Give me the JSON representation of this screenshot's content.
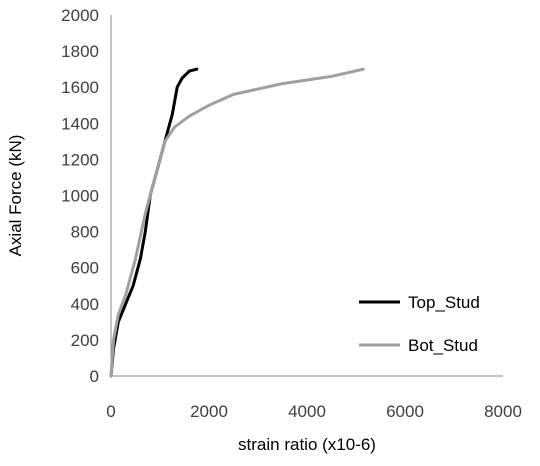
{
  "chart_data": {
    "type": "line",
    "title": "",
    "xlabel": "strain ratio (x10-6)",
    "ylabel": "Axial Force (kN)",
    "xlim": [
      0,
      8000
    ],
    "ylim": [
      0,
      2000
    ],
    "xticks": [
      "0",
      "2000",
      "4000",
      "6000",
      "8000"
    ],
    "yticks": [
      "0",
      "200",
      "400",
      "600",
      "800",
      "1000",
      "1200",
      "1400",
      "1600",
      "1800",
      "2000"
    ],
    "grid": false,
    "legend_position": "bottom-right",
    "series": [
      {
        "name": "Top_Stud",
        "color": "#000000",
        "points": [
          [
            0,
            0
          ],
          [
            50,
            150
          ],
          [
            150,
            300
          ],
          [
            300,
            400
          ],
          [
            450,
            500
          ],
          [
            600,
            650
          ],
          [
            700,
            800
          ],
          [
            800,
            1000
          ],
          [
            950,
            1150
          ],
          [
            1100,
            1300
          ],
          [
            1250,
            1450
          ],
          [
            1350,
            1600
          ],
          [
            1450,
            1650
          ],
          [
            1600,
            1690
          ],
          [
            1750,
            1700
          ]
        ]
      },
      {
        "name": "Bot_Stud",
        "color": "#a0a0a0",
        "points": [
          [
            0,
            0
          ],
          [
            50,
            200
          ],
          [
            150,
            340
          ],
          [
            300,
            450
          ],
          [
            500,
            650
          ],
          [
            700,
            900
          ],
          [
            900,
            1100
          ],
          [
            1100,
            1300
          ],
          [
            1300,
            1380
          ],
          [
            1600,
            1440
          ],
          [
            2000,
            1500
          ],
          [
            2500,
            1560
          ],
          [
            3000,
            1590
          ],
          [
            3500,
            1620
          ],
          [
            4000,
            1640
          ],
          [
            4500,
            1660
          ],
          [
            5150,
            1700
          ]
        ]
      }
    ]
  }
}
